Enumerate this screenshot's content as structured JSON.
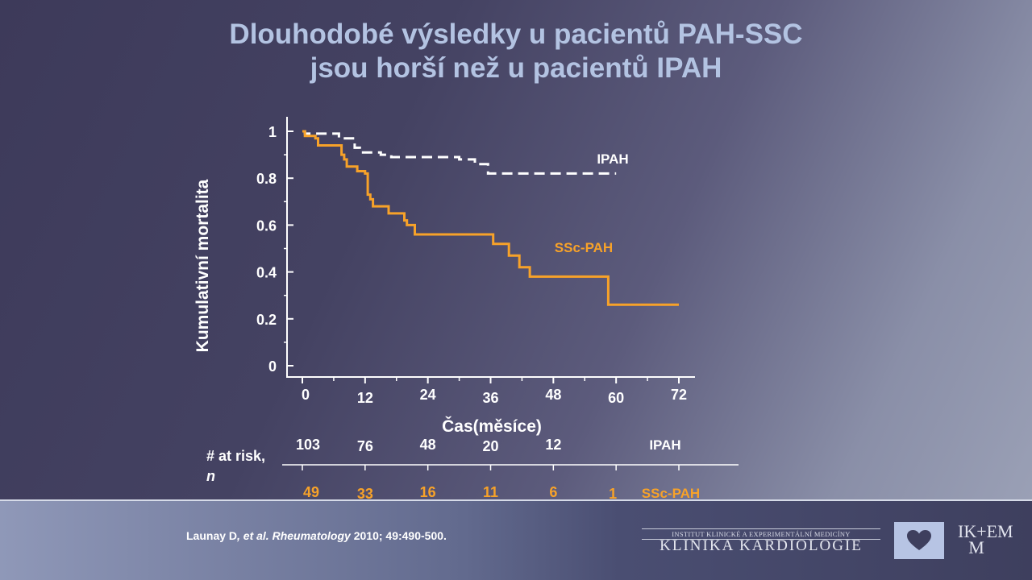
{
  "title": {
    "line1": "Dlouhodobé výsledky u pacientů PAH-SSC",
    "line2": "jsou horší než u pacientů IPAH"
  },
  "chart_data": {
    "type": "line",
    "title": "",
    "xlabel": "Čas(měsíce)",
    "ylabel": "Kumulativní  mortalita",
    "xlim": [
      0,
      72
    ],
    "ylim": [
      0,
      1
    ],
    "xticks": [
      "0",
      "12",
      "24",
      "36",
      "48",
      "60",
      "72"
    ],
    "yticks": [
      "0",
      "0.2",
      "0.4",
      "0.6",
      "0.8",
      "1"
    ],
    "grid": false,
    "series": [
      {
        "name": "IPAH",
        "color": "#ffffff",
        "style": "dashed",
        "points": [
          [
            0,
            1
          ],
          [
            0.5,
            0.99
          ],
          [
            3,
            0.99
          ],
          [
            5,
            0.99
          ],
          [
            7,
            0.97
          ],
          [
            10,
            0.93
          ],
          [
            11,
            0.91
          ],
          [
            13,
            0.91
          ],
          [
            15,
            0.9
          ],
          [
            17,
            0.89
          ],
          [
            26,
            0.89
          ],
          [
            30,
            0.88
          ],
          [
            33,
            0.86
          ],
          [
            35,
            0.86
          ],
          [
            35.5,
            0.82
          ],
          [
            45,
            0.82
          ],
          [
            60,
            0.82
          ]
        ]
      },
      {
        "name": "SSc-PAH",
        "color": "#f7a229",
        "style": "solid",
        "points": [
          [
            0,
            1
          ],
          [
            0.5,
            0.98
          ],
          [
            1.5,
            0.98
          ],
          [
            2.5,
            0.97
          ],
          [
            3,
            0.94
          ],
          [
            7,
            0.94
          ],
          [
            7.5,
            0.9
          ],
          [
            8,
            0.88
          ],
          [
            8.5,
            0.85
          ],
          [
            10,
            0.85
          ],
          [
            10.5,
            0.83
          ],
          [
            12,
            0.82
          ],
          [
            12.5,
            0.73
          ],
          [
            13,
            0.71
          ],
          [
            13.5,
            0.68
          ],
          [
            16,
            0.68
          ],
          [
            16.5,
            0.65
          ],
          [
            19,
            0.65
          ],
          [
            19.5,
            0.62
          ],
          [
            20,
            0.6
          ],
          [
            21,
            0.6
          ],
          [
            21.5,
            0.56
          ],
          [
            36,
            0.56
          ],
          [
            36.5,
            0.52
          ],
          [
            39,
            0.52
          ],
          [
            39.5,
            0.47
          ],
          [
            41,
            0.47
          ],
          [
            41.5,
            0.42
          ],
          [
            43,
            0.42
          ],
          [
            43.5,
            0.38
          ],
          [
            58,
            0.38
          ],
          [
            58.5,
            0.26
          ],
          [
            72,
            0.26
          ]
        ]
      }
    ],
    "annotations": [
      {
        "text": "IPAH",
        "color": "#ffffff"
      },
      {
        "text": "SSc-PAH",
        "color": "#f7a229"
      }
    ],
    "at_risk": {
      "label": "# at risk,",
      "label_n": "n",
      "ipah": {
        "name": "IPAH",
        "values": [
          "103",
          "76",
          "48",
          "20",
          "12",
          ""
        ]
      },
      "ssc_pah": {
        "name": "SSc-PAH",
        "values": [
          "49",
          "33",
          "16",
          "11",
          "6",
          "1"
        ]
      }
    }
  },
  "citation": {
    "authors": "Launay D",
    "etal": ", et al. Rheumatology",
    "rest": " 2010; 49:490-500."
  },
  "branding": {
    "institute": "INSTITUT KLINICKÉ A EXPERIMENTÁLNÍ MEDICÍNY",
    "clinic": "KLINIKA KARDIOLOGIE",
    "logo_icon": "heart-icon",
    "logo_text_top": "IK+EM",
    "logo_text_bottom": "M"
  }
}
